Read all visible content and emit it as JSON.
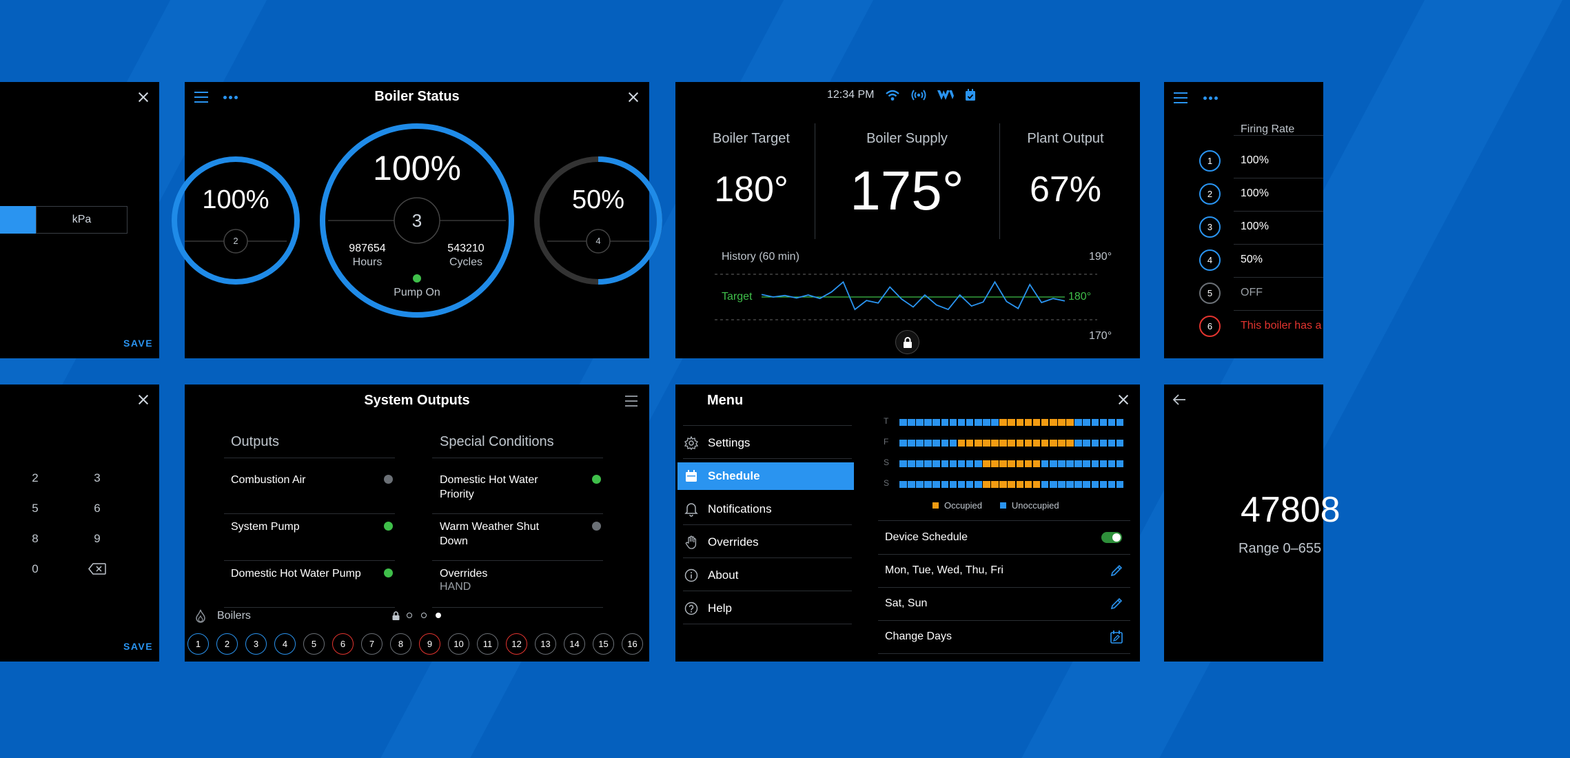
{
  "colors": {
    "background": "#0560be",
    "panel": "#000000",
    "accent": "#2a94f0",
    "green": "#3fbf4a",
    "red": "#e3342f",
    "orange": "#f39c12",
    "gray": "#6b7076"
  },
  "panel_a": {
    "unit": "kPa",
    "save": "SAVE"
  },
  "boiler_status": {
    "title": "Boiler Status",
    "left_gauge": {
      "value": "100%",
      "number": "2",
      "fill_fraction": 1.0
    },
    "center_gauge": {
      "value": "100%",
      "number": "3",
      "hours_value": "987654",
      "hours_label": "Hours",
      "cycles_value": "543210",
      "cycles_label": "Cycles",
      "pump": "Pump On",
      "fill_fraction": 1.0
    },
    "right_gauge": {
      "value": "50%",
      "number": "4",
      "fill_fraction": 0.5
    }
  },
  "status_bar": {
    "time": "12:34 PM",
    "icons": [
      "wifi-icon",
      "broadcast-icon",
      "brand-logo-icon",
      "calendar-check-icon"
    ]
  },
  "main_display": {
    "target_label": "Boiler Target",
    "target_value": "180°",
    "supply_label": "Boiler Supply",
    "supply_value": "175°",
    "output_label": "Plant Output",
    "output_value": "67%",
    "history_label": "History (60 min)",
    "target_line_label": "Target",
    "y_top": "190°",
    "y_mid": "180°",
    "y_bottom": "170°"
  },
  "chart_data": {
    "type": "line",
    "title": "History (60 min)",
    "ylim": [
      170,
      190
    ],
    "target": 180,
    "series": [
      {
        "values": [
          180.5,
          180,
          180.3,
          179.8,
          180.4,
          179.7,
          181,
          183,
          177.5,
          179.3,
          178.8,
          182,
          179.6,
          178,
          180.4,
          178.4,
          177.5,
          180.4,
          178.2,
          179,
          183,
          179.1,
          177.7,
          182.5,
          178.9,
          179.7,
          179.2
        ]
      }
    ]
  },
  "firing_rate": {
    "title": "Firing Rate",
    "rows": [
      {
        "n": "1",
        "value": "100%"
      },
      {
        "n": "2",
        "value": "100%"
      },
      {
        "n": "3",
        "value": "100%"
      },
      {
        "n": "4",
        "value": "50%"
      },
      {
        "n": "5",
        "value": "OFF"
      },
      {
        "n": "6",
        "value": "This boiler has a"
      }
    ]
  },
  "keypad": {
    "keys": [
      "2",
      "3",
      "5",
      "6",
      "8",
      "9",
      "0"
    ],
    "save": "SAVE"
  },
  "system_outputs": {
    "title": "System Outputs",
    "outputs_header": "Outputs",
    "special_header": "Special Conditions",
    "outputs": [
      {
        "label": "Combustion Air",
        "state": "off"
      },
      {
        "label": "System Pump",
        "state": "on"
      },
      {
        "label": "Domestic Hot Water Pump",
        "state": "on"
      }
    ],
    "special": [
      {
        "label": "Domestic Hot Water Priority",
        "state": "on"
      },
      {
        "label": "Warm Weather Shut Down",
        "state": "off"
      },
      {
        "label": "Overrides",
        "sub": "HAND"
      }
    ],
    "boilers_label": "Boilers",
    "boilers": [
      {
        "n": "1",
        "style": "blue"
      },
      {
        "n": "2",
        "style": "blue"
      },
      {
        "n": "3",
        "style": "blue"
      },
      {
        "n": "4",
        "style": "blue"
      },
      {
        "n": "5",
        "style": "gray"
      },
      {
        "n": "6",
        "style": "red"
      },
      {
        "n": "7",
        "style": "gray"
      },
      {
        "n": "8",
        "style": "gray"
      },
      {
        "n": "9",
        "style": "red"
      },
      {
        "n": "10",
        "style": "gray"
      },
      {
        "n": "11",
        "style": "gray"
      },
      {
        "n": "12",
        "style": "red"
      },
      {
        "n": "13",
        "style": "gray"
      },
      {
        "n": "14",
        "style": "gray"
      },
      {
        "n": "15",
        "style": "gray"
      },
      {
        "n": "16",
        "style": "gray"
      }
    ]
  },
  "menu": {
    "title": "Menu",
    "items": [
      {
        "label": "Settings",
        "icon": "gear-icon"
      },
      {
        "label": "Schedule",
        "icon": "calendar-icon",
        "active": true
      },
      {
        "label": "Notifications",
        "icon": "bell-icon"
      },
      {
        "label": "Overrides",
        "icon": "hand-icon"
      },
      {
        "label": "About",
        "icon": "info-icon"
      },
      {
        "label": "Help",
        "icon": "help-icon"
      }
    ]
  },
  "schedule": {
    "days": [
      {
        "label": "T",
        "occupied_from": 0.46,
        "occupied_to": 0.76
      },
      {
        "label": "F",
        "occupied_from": 0.25,
        "occupied_to": 0.76
      },
      {
        "label": "S",
        "occupied_from": 0.38,
        "occupied_to": 0.62
      },
      {
        "label": "S",
        "occupied_from": 0.38,
        "occupied_to": 0.62
      }
    ],
    "legend_occupied": "Occupied",
    "legend_unoccupied": "Unoccupied",
    "settings": [
      {
        "label": "Device Schedule",
        "control": "toggle",
        "on": true
      },
      {
        "label": "Mon, Tue, Wed, Thu, Fri",
        "control": "pencil-icon"
      },
      {
        "label": "Sat, Sun",
        "control": "pencil-icon"
      },
      {
        "label": "Change Days",
        "control": "calendar-edit-icon"
      }
    ]
  },
  "range_panel": {
    "value": "47808",
    "range": "Range 0–655"
  }
}
